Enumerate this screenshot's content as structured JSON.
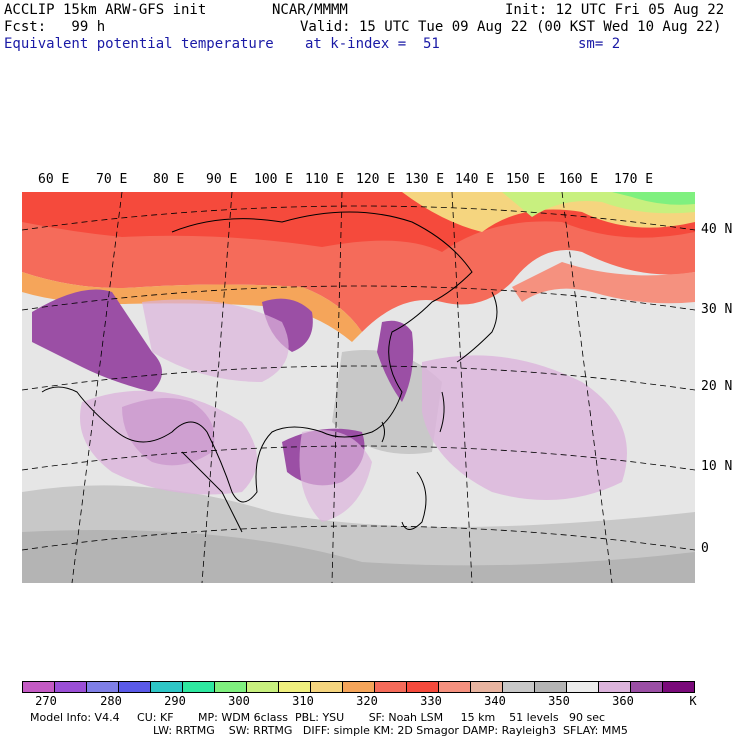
{
  "header": {
    "model": "ACCLIP 15km ARW-GFS init",
    "fcst": "Fcst:   99 h",
    "field": "Equivalent potential temperature",
    "center": "NCAR/MMMM",
    "init": "Init: 12 UTC Fri 05 Aug 22",
    "valid": "Valid: 15 UTC Tue 09 Aug 22 (00 KST Wed 10 Aug 22)",
    "level": "at k-index =  51",
    "smooth": "sm= 2"
  },
  "longitudes": [
    "60 E",
    "70 E",
    "80 E",
    "90 E",
    "100 E",
    "110 E",
    "120 E",
    "130 E",
    "140 E",
    "150 E",
    "160 E",
    "170 E"
  ],
  "latitudes": [
    "40 N",
    "30 N",
    "20 N",
    "10 N",
    "0"
  ],
  "colorbar": {
    "colors": [
      "#c45bc4",
      "#9b4fd6",
      "#7f7fe6",
      "#5a5ae8",
      "#2ec6c6",
      "#2ee8a0",
      "#7ff07f",
      "#c8f07f",
      "#f0f07f",
      "#f5d57f",
      "#f5a55a",
      "#f56b5a",
      "#f54a3c",
      "#f5917f",
      "#e8b4a0",
      "#c8c8c8",
      "#b4b4b4",
      "#ececec",
      "#dcb4dc",
      "#9b4fa5",
      "#7a0a7a"
    ],
    "ticks": [
      "270",
      "280",
      "290",
      "300",
      "310",
      "320",
      "330",
      "340",
      "350",
      "360"
    ],
    "unit": "K"
  },
  "footer": {
    "line1": "Model Info: V4.4     CU: KF       MP: WDM 6class  PBL: YSU       SF: Noah LSM     15 km    51 levels   90 sec",
    "line2": "LW: RRTMG    SW: RRTMG   DIFF: simple KM: 2D Smagor DAMP: Rayleigh3  SFLAY: MM5"
  }
}
